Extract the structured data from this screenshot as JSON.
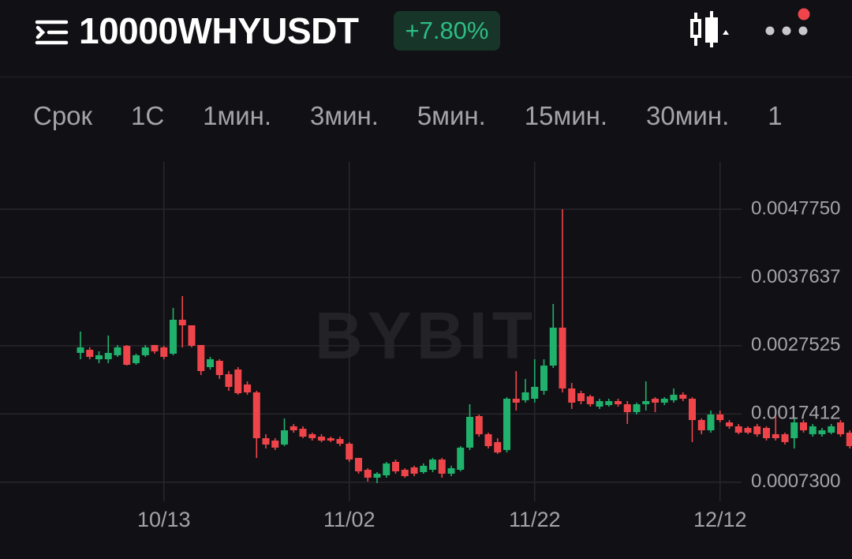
{
  "header": {
    "symbol": "10000WHYUSDT",
    "change": "+7.80%"
  },
  "tabs": [
    "Срок",
    "1С",
    "1мин.",
    "3мин.",
    "5мин.",
    "15мин.",
    "30мин.",
    "1"
  ],
  "chart_data": {
    "type": "candlestick",
    "watermark": "BYBIT",
    "up_color": "#20b26c",
    "down_color": "#ef454a",
    "grid": true,
    "categories": [
      null,
      null,
      null,
      null,
      null,
      null,
      null,
      null,
      null,
      "10/13",
      null,
      null,
      null,
      null,
      null,
      null,
      null,
      null,
      null,
      null,
      null,
      null,
      null,
      null,
      null,
      null,
      null,
      null,
      null,
      "11/02",
      null,
      null,
      null,
      null,
      null,
      null,
      null,
      null,
      null,
      null,
      null,
      null,
      null,
      null,
      null,
      null,
      null,
      null,
      null,
      "11/22",
      null,
      null,
      null,
      null,
      null,
      null,
      null,
      null,
      null,
      null,
      null,
      null,
      null,
      null,
      null,
      null,
      null,
      null,
      null,
      "12/12",
      null,
      null,
      null,
      null,
      null,
      null,
      null,
      null,
      null,
      null,
      null,
      null,
      null,
      null
    ],
    "open": [
      0.002646,
      0.002692,
      0.002552,
      0.002552,
      0.002611,
      0.002751,
      0.002494,
      0.002611,
      0.002763,
      0.002728,
      0.002634,
      0.003137,
      0.003055,
      0.002763,
      0.002435,
      0.002529,
      0.00233,
      0.0024,
      0.002178,
      0.002061,
      0.001382,
      0.001347,
      0.001288,
      0.001558,
      0.001522,
      0.001441,
      0.001405,
      0.001382,
      0.00137,
      0.0013,
      0.00109,
      0.000914,
      0.000797,
      0.000832,
      0.001031,
      0.000914,
      0.000949,
      0.000879,
      0.000914,
      0.001066,
      0.000856,
      0.000914,
      0.001242,
      0.00171,
      0.001441,
      0.001324,
      0.001207,
      0.001967,
      0.001944,
      0.001967,
      0.002084,
      0.002458,
      0.00302,
      0.002119,
      0.002049,
      0.002002,
      0.00185,
      0.001873,
      0.001932,
      0.001885,
      0.001768,
      0.001885,
      0.001967,
      0.001909,
      0.001944,
      0.002026,
      0.001967,
      0.001651,
      0.001499,
      0.001733,
      0.001616,
      0.001558,
      0.001534,
      0.001558,
      0.001534,
      0.001441,
      0.001441,
      0.001382,
      0.001616,
      0.001441,
      0.001441,
      0.001464,
      0.001616,
      0.001464
    ],
    "high": [
      0.002962,
      0.002728,
      0.002669,
      0.002903,
      0.002763,
      0.002763,
      0.002634,
      0.002763,
      0.002763,
      0.002751,
      0.003313,
      0.003488,
      0.003055,
      0.002763,
      0.002587,
      0.002552,
      0.002377,
      0.002435,
      0.002224,
      0.002084,
      0.001441,
      0.001382,
      0.001675,
      0.001593,
      0.001558,
      0.001464,
      0.001441,
      0.001405,
      0.001405,
      0.001324,
      0.00109,
      0.000937,
      0.000879,
      0.001031,
      0.001066,
      0.000937,
      0.000973,
      0.001008,
      0.00109,
      0.00109,
      0.000973,
      0.001265,
      0.001885,
      0.001733,
      0.001464,
      0.001382,
      0.00199,
      0.002377,
      0.00226,
      0.002552,
      0.002552,
      0.003371,
      0.004775,
      0.002201,
      0.002084,
      0.002026,
      0.001967,
      0.001967,
      0.001967,
      0.001932,
      0.001909,
      0.002224,
      0.00199,
      0.00199,
      0.002119,
      0.002061,
      0.00199,
      0.001675,
      0.001792,
      0.001792,
      0.001651,
      0.001593,
      0.001558,
      0.001593,
      0.001558,
      0.00171,
      0.001464,
      0.001675,
      0.001651,
      0.001593,
      0.001534,
      0.001593,
      0.001651,
      0.001499
    ],
    "low": [
      0.002552,
      0.002552,
      0.002494,
      0.002494,
      0.002587,
      0.002458,
      0.00247,
      0.002587,
      0.002634,
      0.002552,
      0.002611,
      0.002728,
      0.002728,
      0.002318,
      0.0024,
      0.00226,
      0.002084,
      0.002026,
      0.002026,
      0.00109,
      0.00123,
      0.001207,
      0.001265,
      0.001464,
      0.001382,
      0.001347,
      0.001324,
      0.001324,
      0.001265,
      0.001031,
      0.000856,
      0.000739,
      0.000715,
      0.000797,
      0.000856,
      0.000797,
      0.00082,
      0.000856,
      0.000879,
      0.000797,
      0.00082,
      0.000891,
      0.001207,
      0.001405,
      0.00123,
      0.001148,
      0.001171,
      0.001792,
      0.001909,
      0.001909,
      0.002026,
      0.002423,
      0.002061,
      0.001815,
      0.001885,
      0.00185,
      0.001815,
      0.00185,
      0.00185,
      0.001593,
      0.001733,
      0.001792,
      0.001768,
      0.001873,
      0.001909,
      0.001932,
      0.001324,
      0.001441,
      0.001464,
      0.001616,
      0.001522,
      0.001441,
      0.001441,
      0.001405,
      0.001347,
      0.001347,
      0.001288,
      0.00123,
      0.001464,
      0.001405,
      0.001405,
      0.001441,
      0.001405,
      0.00123
    ],
    "close": [
      0.002728,
      0.002587,
      0.002611,
      0.002646,
      0.002728,
      0.00247,
      0.002611,
      0.002728,
      0.002669,
      0.002587,
      0.003137,
      0.003055,
      0.002751,
      0.002377,
      0.002552,
      0.002318,
      0.002143,
      0.002049,
      0.002061,
      0.001382,
      0.001288,
      0.001242,
      0.001499,
      0.001499,
      0.001405,
      0.001382,
      0.001347,
      0.001347,
      0.0013,
      0.001066,
      0.000891,
      0.000797,
      0.000856,
      0.001008,
      0.000891,
      0.00082,
      0.000856,
      0.000973,
      0.001066,
      0.000856,
      0.000937,
      0.001242,
      0.001698,
      0.001441,
      0.001265,
      0.001171,
      0.001967,
      0.001909,
      0.002061,
      0.002143,
      0.002458,
      0.00302,
      0.002119,
      0.001909,
      0.001932,
      0.001885,
      0.001932,
      0.001932,
      0.001885,
      0.001768,
      0.001885,
      0.001932,
      0.001909,
      0.001967,
      0.002026,
      0.001967,
      0.001651,
      0.001499,
      0.001733,
      0.001651,
      0.001558,
      0.001464,
      0.001464,
      0.001441,
      0.001382,
      0.001382,
      0.001324,
      0.001616,
      0.001499,
      0.001558,
      0.001499,
      0.001558,
      0.001441,
      0.001265
    ],
    "ylim": [
      0.000446,
      0.005477
    ],
    "yticks": [
      {
        "value": 0.004775,
        "label": "0.0047750"
      },
      0.0037637,
      0.0027525,
      0.0017412,
      {
        "value": 0.00073,
        "label": "0.0007300"
      }
    ]
  }
}
